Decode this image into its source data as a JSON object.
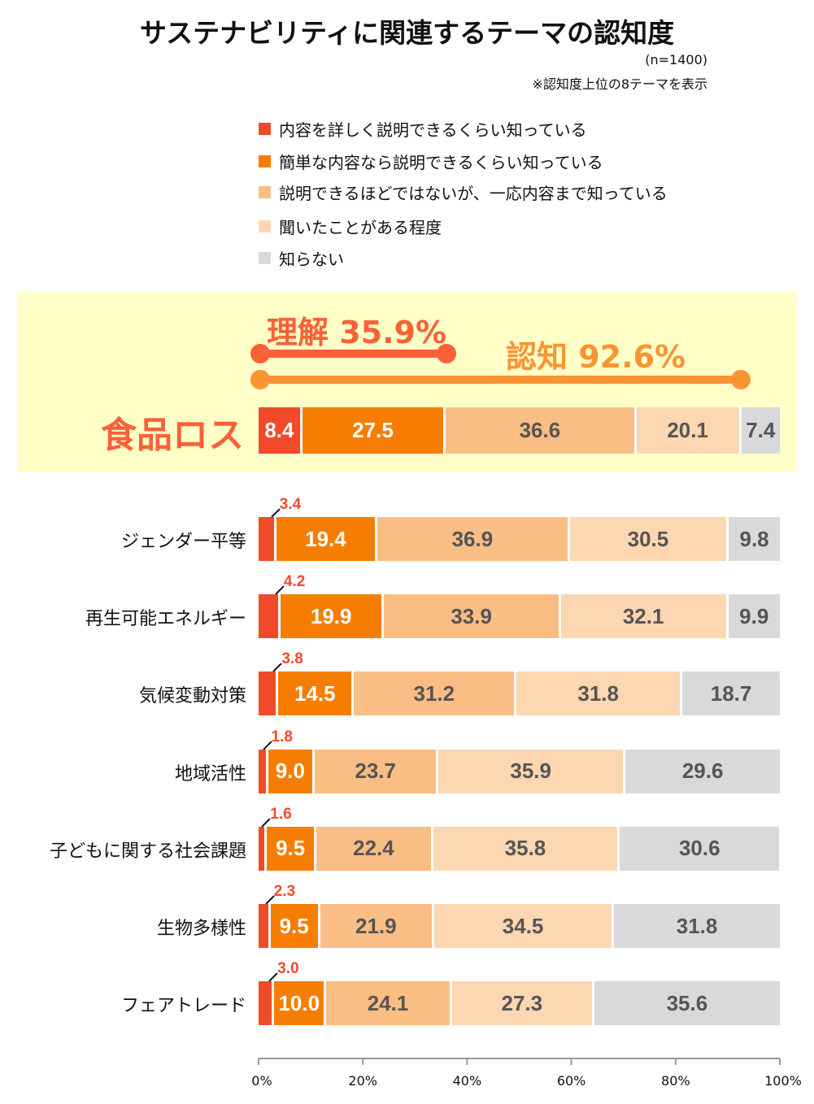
{
  "title": "サステナビリティに関連するテーマの認知度",
  "sample": "(n=1400)",
  "note": "※認知度上位の8テーマを表示",
  "highlight": {
    "understanding": "理解 35.9%",
    "awareness": "認知 92.6%",
    "understanding_color": "#fa6138",
    "awareness_color": "#f99432"
  },
  "chart_data": {
    "type": "bar",
    "orientation": "horizontal-stacked",
    "xlim": [
      0,
      100
    ],
    "xticks": [
      "0%",
      "20%",
      "40%",
      "60%",
      "80%",
      "100%"
    ],
    "legend_position": "top",
    "series": [
      {
        "name": "内容を詳しく説明できるくらい知っている",
        "color": "#f04a2a"
      },
      {
        "name": "簡単な内容なら説明できるくらい知っている",
        "color": "#f77d00"
      },
      {
        "name": "説明できるほどではないが、一応内容まで知っている",
        "color": "#fabd84"
      },
      {
        "name": "聞いたことがある程度",
        "color": "#fdd6b2"
      },
      {
        "name": "知らない",
        "color": "#d9d9d9"
      }
    ],
    "categories": [
      "食品ロス",
      "ジェンダー平等",
      "再生可能エネルギー",
      "気候変動対策",
      "地域活性",
      "子どもに関する社会課題",
      "生物多様性",
      "フェアトレード"
    ],
    "values": [
      [
        8.4,
        27.5,
        36.6,
        20.1,
        7.4
      ],
      [
        3.4,
        19.4,
        36.9,
        30.5,
        9.8
      ],
      [
        4.2,
        19.9,
        33.9,
        32.1,
        9.9
      ],
      [
        3.8,
        14.5,
        31.2,
        31.8,
        18.7
      ],
      [
        1.8,
        9.0,
        23.7,
        35.9,
        29.6
      ],
      [
        1.6,
        9.5,
        22.4,
        35.8,
        30.6
      ],
      [
        2.3,
        9.5,
        21.9,
        34.5,
        31.8
      ],
      [
        3.0,
        10.0,
        24.1,
        27.3,
        35.6
      ]
    ],
    "labels": [
      [
        "8.4",
        "27.5",
        "36.6",
        "20.1",
        "7.4"
      ],
      [
        "3.4",
        "19.4",
        "36.9",
        "30.5",
        "9.8"
      ],
      [
        "4.2",
        "19.9",
        "33.9",
        "32.1",
        "9.9"
      ],
      [
        "3.8",
        "14.5",
        "31.2",
        "31.8",
        "18.7"
      ],
      [
        "1.8",
        "9.0",
        "23.7",
        "35.9",
        "29.6"
      ],
      [
        "1.6",
        "9.5",
        "22.4",
        "35.8",
        "30.6"
      ],
      [
        "2.3",
        "9.5",
        "21.9",
        "34.5",
        "31.8"
      ],
      [
        "3.0",
        "10.0",
        "24.1",
        "27.3",
        "35.6"
      ]
    ]
  }
}
